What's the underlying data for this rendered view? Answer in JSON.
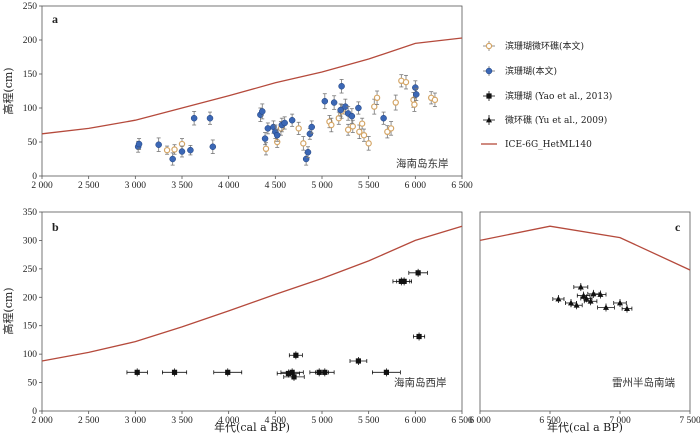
{
  "chart_data": [
    {
      "id": "a",
      "type": "scatter",
      "panel_label": "a",
      "region_label": "海南岛东岸",
      "ylabel": "高程(cm)",
      "xlabel": "",
      "xlim": [
        2000,
        6500
      ],
      "ylim": [
        0,
        250
      ],
      "xticks": [
        "2 000",
        "2 500",
        "3 000",
        "3 500",
        "4 000",
        "4 500",
        "5 000",
        "5 500",
        "6 000",
        "6 500"
      ],
      "yticks": [
        "0",
        "50",
        "100",
        "150",
        "200",
        "250"
      ],
      "curve": [
        [
          2000,
          62
        ],
        [
          2500,
          70
        ],
        [
          3000,
          82
        ],
        [
          3500,
          100
        ],
        [
          4000,
          118
        ],
        [
          4500,
          137
        ],
        [
          5000,
          153
        ],
        [
          5500,
          172
        ],
        [
          6000,
          195
        ],
        [
          6500,
          203
        ]
      ],
      "series": [
        {
          "name": "滨珊瑚微环礁(本文)",
          "marker": "open-circle",
          "color": "#d4a565",
          "points": [
            [
              3340,
              38,
              6
            ],
            [
              3420,
              39,
              7
            ],
            [
              3500,
              47,
              8
            ],
            [
              4400,
              40,
              9
            ],
            [
              4520,
              50,
              8
            ],
            [
              4560,
              70,
              10
            ],
            [
              4750,
              70,
              9
            ],
            [
              4800,
              48,
              10
            ],
            [
              5080,
              80,
              9
            ],
            [
              5100,
              75,
              10
            ],
            [
              5180,
              85,
              9
            ],
            [
              5210,
              95,
              10
            ],
            [
              5280,
              68,
              8
            ],
            [
              5330,
              73,
              9
            ],
            [
              5400,
              65,
              10
            ],
            [
              5430,
              77,
              8
            ],
            [
              5450,
              60,
              9
            ],
            [
              5500,
              48,
              10
            ],
            [
              5560,
              102,
              11
            ],
            [
              5590,
              115,
              10
            ],
            [
              5700,
              65,
              9
            ],
            [
              5740,
              70,
              10
            ],
            [
              5790,
              108,
              11
            ],
            [
              5850,
              140,
              9
            ],
            [
              5900,
              138,
              10
            ],
            [
              5980,
              112,
              11
            ],
            [
              5990,
              105,
              10
            ],
            [
              6170,
              115,
              9
            ],
            [
              6210,
              112,
              10
            ]
          ]
        },
        {
          "name": "滨珊瑚(本文)",
          "marker": "filled-circle",
          "color": "#3b67b5",
          "points": [
            [
              3030,
              43,
              8
            ],
            [
              3040,
              47,
              8
            ],
            [
              3250,
              46,
              10
            ],
            [
              3400,
              25,
              9
            ],
            [
              3500,
              36,
              8
            ],
            [
              3590,
              38,
              7
            ],
            [
              3630,
              85,
              10
            ],
            [
              3800,
              85,
              9
            ],
            [
              3830,
              43,
              10
            ],
            [
              4340,
              90,
              10
            ],
            [
              4360,
              95,
              11
            ],
            [
              4390,
              55,
              9
            ],
            [
              4420,
              70,
              8
            ],
            [
              4480,
              72,
              9
            ],
            [
              4500,
              65,
              10
            ],
            [
              4520,
              60,
              9
            ],
            [
              4570,
              75,
              10
            ],
            [
              4600,
              78,
              9
            ],
            [
              4680,
              82,
              9
            ],
            [
              4830,
              25,
              9
            ],
            [
              4850,
              35,
              8
            ],
            [
              4870,
              62,
              8
            ],
            [
              4890,
              72,
              9
            ],
            [
              5030,
              110,
              11
            ],
            [
              5130,
              108,
              10
            ],
            [
              5200,
              97,
              9
            ],
            [
              5210,
              132,
              10
            ],
            [
              5250,
              102,
              11
            ],
            [
              5280,
              92,
              10
            ],
            [
              5320,
              88,
              11
            ],
            [
              5390,
              100,
              9
            ],
            [
              5660,
              85,
              9
            ],
            [
              6000,
              130,
              10
            ],
            [
              6010,
              120,
              9
            ]
          ]
        }
      ],
      "legend": [
        {
          "marker": "open-circle",
          "color": "#d4a565",
          "label": "滨珊瑚微环礁(本文)"
        },
        {
          "marker": "filled-circle",
          "color": "#3b67b5",
          "label": "滨珊瑚(本文)"
        },
        {
          "marker": "filled-square",
          "color": "#111111",
          "label": "滨珊瑚 (Yao et al., 2013)"
        },
        {
          "marker": "filled-triangle",
          "color": "#111111",
          "label": "微环礁 (Yu et al., 2009)"
        },
        {
          "marker": "line",
          "color": "#b54a3c",
          "label": "ICE-6G_HetML140"
        }
      ]
    },
    {
      "id": "b",
      "type": "scatter",
      "panel_label": "b",
      "region_label": "海南岛西岸",
      "ylabel": "高程(cm)",
      "xlabel": "年代(cal a BP)",
      "xlim": [
        2000,
        6500
      ],
      "ylim": [
        0,
        350
      ],
      "xticks": [
        "2 000",
        "2 500",
        "3 000",
        "3 500",
        "4 000",
        "4 500",
        "5 000",
        "5 500",
        "6 000",
        "6 500"
      ],
      "yticks": [
        "0",
        "50",
        "100",
        "150",
        "200",
        "250",
        "300",
        "350"
      ],
      "curve": [
        [
          2000,
          88
        ],
        [
          2500,
          103
        ],
        [
          3000,
          122
        ],
        [
          3500,
          148
        ],
        [
          4000,
          176
        ],
        [
          4500,
          205
        ],
        [
          5000,
          233
        ],
        [
          5500,
          264
        ],
        [
          6000,
          300
        ],
        [
          6500,
          325
        ]
      ],
      "series": [
        {
          "name": "滨珊瑚 (Yao et al., 2013)",
          "marker": "filled-square",
          "color": "#111111",
          "points": [
            [
              3020,
              68,
              110
            ],
            [
              3420,
              68,
              130
            ],
            [
              3990,
              68,
              150
            ],
            [
              4640,
              66,
              120
            ],
            [
              4680,
              68,
              120
            ],
            [
              4700,
              60,
              110
            ],
            [
              4720,
              98,
              70
            ],
            [
              4970,
              68,
              100
            ],
            [
              5030,
              68,
              100
            ],
            [
              5390,
              88,
              90
            ],
            [
              5690,
              68,
              150
            ],
            [
              5850,
              228,
              90
            ],
            [
              5880,
              228,
              80
            ],
            [
              6030,
              243,
              100
            ],
            [
              6040,
              131,
              60
            ]
          ]
        }
      ]
    },
    {
      "id": "c",
      "type": "scatter",
      "panel_label": "c",
      "region_label": "雷州半岛南端",
      "ylabel": "",
      "xlabel": "年代(cal a BP)",
      "xlim": [
        6000,
        7500
      ],
      "ylim": [
        0,
        350
      ],
      "xticks": [
        "6 000",
        "6 500",
        "7 000",
        "7 500"
      ],
      "yticks": [],
      "curve": [
        [
          6000,
          300
        ],
        [
          6500,
          325
        ],
        [
          7000,
          305
        ],
        [
          7500,
          248
        ]
      ],
      "series": [
        {
          "name": "微环礁 (Yu et al., 2009)",
          "marker": "filled-triangle",
          "color": "#111111",
          "points": [
            [
              6560,
              197,
              40
            ],
            [
              6650,
              190,
              40
            ],
            [
              6690,
              186,
              40
            ],
            [
              6720,
              218,
              50
            ],
            [
              6740,
              203,
              45
            ],
            [
              6760,
              198,
              40
            ],
            [
              6790,
              193,
              45
            ],
            [
              6810,
              206,
              40
            ],
            [
              6860,
              205,
              40
            ],
            [
              6900,
              182,
              60
            ],
            [
              7000,
              190,
              45
            ],
            [
              7050,
              180,
              35
            ]
          ]
        }
      ]
    }
  ]
}
